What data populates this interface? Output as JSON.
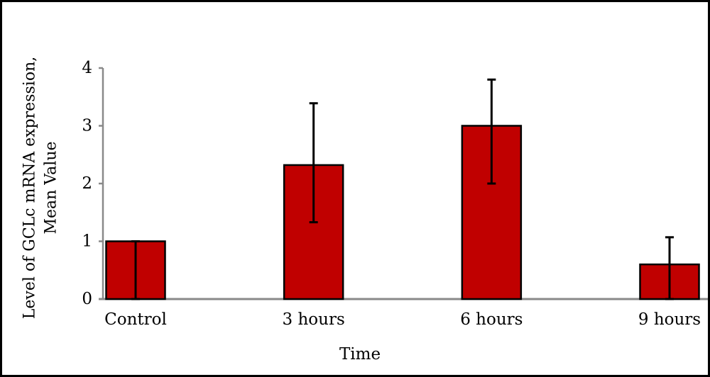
{
  "chart_data": {
    "type": "bar",
    "categories": [
      "Control",
      "3 hours",
      "6 hours",
      "9 hours"
    ],
    "values": [
      1.0,
      2.32,
      3.0,
      0.6
    ],
    "error_bars": {
      "upper": [
        1.0,
        3.39,
        3.8,
        1.07
      ],
      "lower": [
        0.0,
        1.33,
        2.0,
        0.0
      ]
    },
    "xlabel": "Time",
    "ylabel": [
      "Level of GCLc mRNA expression,",
      "Mean Value"
    ],
    "ylim": [
      0,
      4
    ],
    "yticks": [
      0,
      1,
      2,
      3,
      4
    ],
    "grid": false,
    "legend": "none",
    "colors": {
      "background": "#ffffff",
      "border": "#000000",
      "bar": "#c00000",
      "bar_edge": "#000000",
      "axis": "#898989",
      "error_bar": "#000000"
    }
  }
}
